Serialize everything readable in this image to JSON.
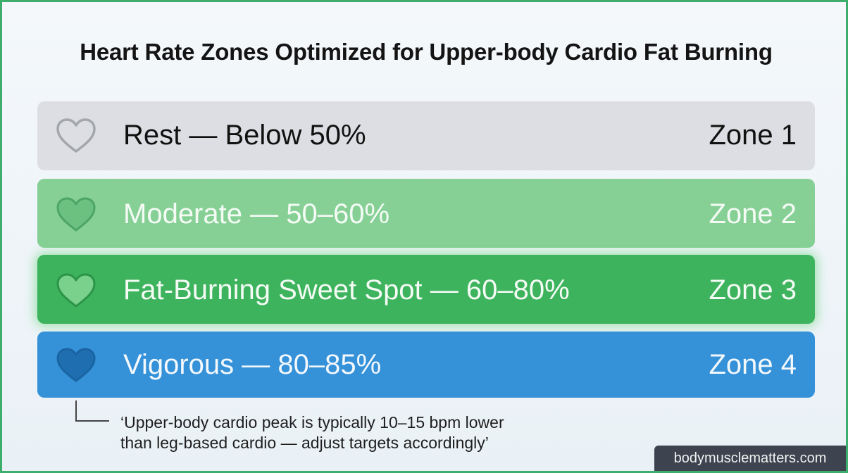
{
  "title": "Heart Rate Zones Optimized for Upper-body Cardio Fat Burning",
  "zones": [
    {
      "label": "Rest — Below 50%",
      "zone": "Zone 1",
      "color": "#dcdee3",
      "heart_fill": "none",
      "heart_stroke": "#a3a6ab",
      "icon": "heart-outline-icon"
    },
    {
      "label": "Moderate — 50–60%",
      "zone": "Zone 2",
      "color": "#86d095",
      "heart_fill": "#6cc080",
      "heart_stroke": "#4da565",
      "icon": "heart-icon"
    },
    {
      "label": "Fat-Burning Sweet Spot — 60–80%",
      "zone": "Zone 3",
      "color": "#3eb35d",
      "heart_fill": "#79d18b",
      "heart_stroke": "#2c9448",
      "icon": "heart-icon"
    },
    {
      "label": "Vigorous — 80–85%",
      "zone": "Zone 4",
      "color": "#3591d8",
      "heart_fill": "#1f6fb0",
      "heart_stroke": "#1a64a3",
      "icon": "heart-icon"
    }
  ],
  "note": {
    "line1": "‘Upper-body cardio peak is typically 10–15 bpm lower",
    "line2": "than leg-based cardio — adjust targets accordingly’"
  },
  "watermark": "bodymusclematters.com"
}
